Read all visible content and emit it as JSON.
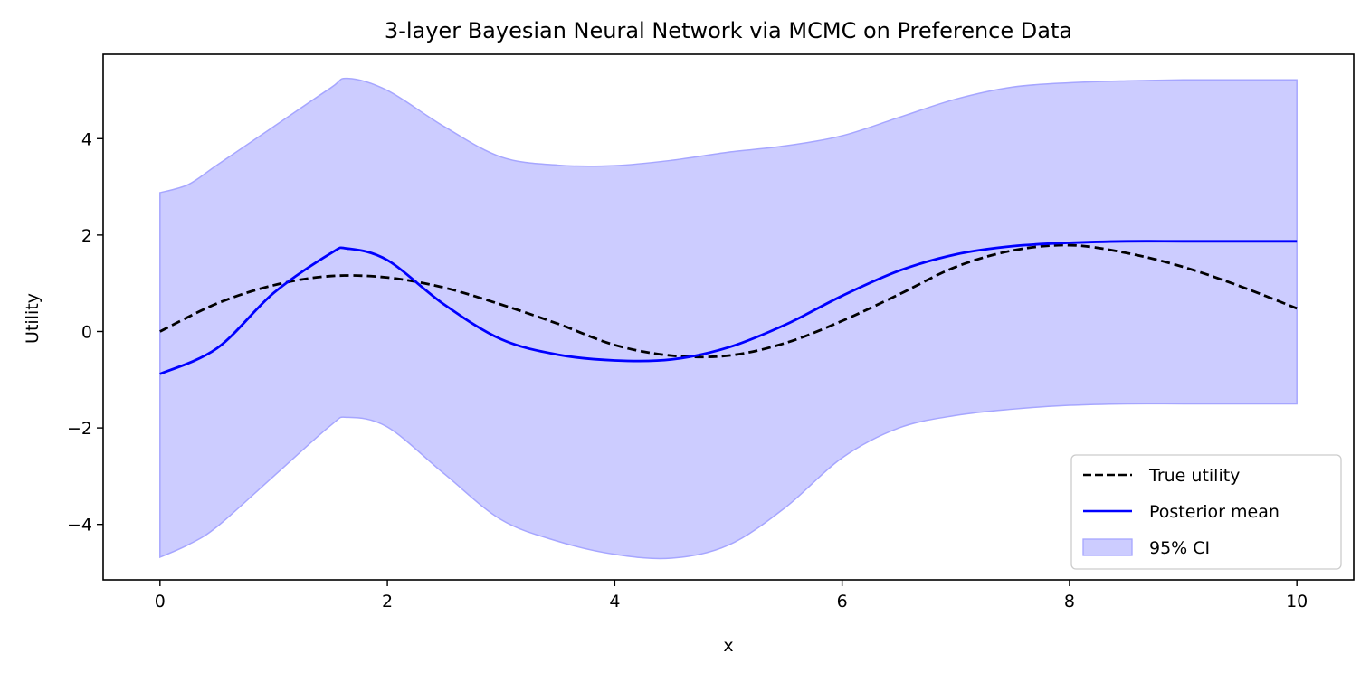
{
  "chart_data": {
    "type": "line",
    "title": "3-layer Bayesian Neural Network via MCMC on Preference Data",
    "xlabel": "x",
    "ylabel": "Utility",
    "xlim": [
      -0.5,
      10.5
    ],
    "ylim": [
      -5.15,
      5.75
    ],
    "xticks": [
      0,
      2,
      4,
      6,
      8,
      10
    ],
    "yticks": [
      -4,
      -2,
      0,
      2,
      4
    ],
    "grid": false,
    "legend_position": "lower right",
    "legend": [
      "True utility",
      "Posterior mean",
      "95% CI"
    ],
    "series": [
      {
        "name": "True utility",
        "style": "dashed",
        "color": "#000000",
        "x": [
          0,
          0.5,
          1,
          1.5,
          2,
          2.5,
          3,
          3.5,
          4,
          4.5,
          5,
          5.5,
          6,
          6.5,
          7,
          7.5,
          8,
          8.5,
          9,
          9.5,
          10
        ],
        "y": [
          0.0,
          0.58,
          0.96,
          1.15,
          1.12,
          0.91,
          0.56,
          0.16,
          -0.28,
          -0.5,
          -0.5,
          -0.24,
          0.22,
          0.77,
          1.34,
          1.68,
          1.79,
          1.63,
          1.34,
          0.94,
          0.48
        ]
      },
      {
        "name": "Posterior mean",
        "style": "solid",
        "color": "#0000ff",
        "x": [
          0,
          0.5,
          1,
          1.5,
          1.65,
          2,
          2.5,
          3,
          3.5,
          4,
          4.5,
          5,
          5.5,
          6,
          6.5,
          7,
          7.5,
          8,
          8.5,
          9,
          9.5,
          10
        ],
        "y": [
          -0.88,
          -0.35,
          0.8,
          1.62,
          1.72,
          1.48,
          0.56,
          -0.16,
          -0.48,
          -0.6,
          -0.58,
          -0.33,
          0.14,
          0.74,
          1.26,
          1.6,
          1.77,
          1.84,
          1.87,
          1.87,
          1.87,
          1.87
        ]
      },
      {
        "name": "95% CI",
        "style": "band",
        "color": "#ccccff",
        "x": [
          0,
          0.25,
          0.5,
          1,
          1.5,
          1.65,
          2,
          2.5,
          3,
          3.5,
          4,
          4.5,
          5,
          5.5,
          6,
          6.5,
          7,
          7.5,
          8,
          8.5,
          9,
          9.5,
          10
        ],
        "lower": [
          -4.68,
          -4.42,
          -4.05,
          -3.0,
          -1.95,
          -1.78,
          -1.98,
          -2.95,
          -3.9,
          -4.35,
          -4.62,
          -4.7,
          -4.43,
          -3.65,
          -2.62,
          -2.0,
          -1.74,
          -1.61,
          -1.53,
          -1.5,
          -1.5,
          -1.5,
          -1.5
        ],
        "upper": [
          2.88,
          3.05,
          3.45,
          4.25,
          5.05,
          5.25,
          5.0,
          4.25,
          3.62,
          3.45,
          3.44,
          3.55,
          3.72,
          3.85,
          4.06,
          4.44,
          4.82,
          5.07,
          5.16,
          5.2,
          5.22,
          5.22,
          5.22
        ]
      }
    ]
  },
  "colors": {
    "band_fill": "#ccccff",
    "band_edge": "#a6a6ff",
    "mean_line": "#0000ff",
    "true_line": "#000000"
  }
}
